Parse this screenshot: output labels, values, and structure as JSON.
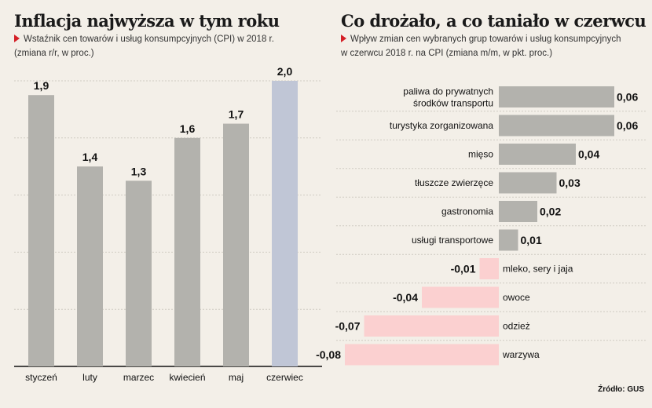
{
  "left": {
    "title": "Inflacja najwyższa w tym roku",
    "subtitle_line1": "Wstaźnik cen towarów i usług konsumpcyjnych (CPI) w 2018 r.",
    "subtitle_line2": "(zmiana r/r, w proc.)"
  },
  "right": {
    "title": "Co drożało, a co taniało w czerwcu",
    "subtitle_line1": "Wpływ zmian cen wybranych grup towarów i usług konsumpcyjnych",
    "subtitle_line2": "w czerwcu 2018 r. na CPI (zmiana  m/m, w pkt. proc.)"
  },
  "source": "Źródło: GUS",
  "colors": {
    "bar_gray": "#b3b2ad",
    "bar_highlight": "#c0c6d6",
    "bar_negative": "#fbd0d0",
    "gridline": "#cfcbc2",
    "accent_marker": "#d42027"
  },
  "chart_data": [
    {
      "type": "bar",
      "categories": [
        "styczeń",
        "luty",
        "marzec",
        "kwiecień",
        "maj",
        "czerwiec"
      ],
      "values": [
        1.9,
        1.4,
        1.3,
        1.6,
        1.7,
        2.0
      ],
      "value_labels": [
        "1,9",
        "1,4",
        "1,3",
        "1,6",
        "1,7",
        "2,0"
      ],
      "highlight_index": 5,
      "ylim": [
        0,
        2.0
      ],
      "grid": true
    },
    {
      "type": "bar",
      "orientation": "horizontal",
      "categories": [
        [
          "paliwa do prywatnych",
          "środków transportu"
        ],
        [
          "turystyka zorganizowana"
        ],
        [
          "mięso"
        ],
        [
          "tłuszcze zwierzęce"
        ],
        [
          "gastronomia"
        ],
        [
          "usługi transportowe"
        ],
        [
          "mleko, sery i jaja"
        ],
        [
          "owoce"
        ],
        [
          "odzież"
        ],
        [
          "warzywa"
        ]
      ],
      "values": [
        0.06,
        0.06,
        0.04,
        0.03,
        0.02,
        0.01,
        -0.01,
        -0.04,
        -0.07,
        -0.08
      ],
      "value_labels": [
        "0,06",
        "0,06",
        "0,04",
        "0,03",
        "0,02",
        "0,01",
        "-0,01",
        "-0,04",
        "-0,07",
        "-0,08"
      ],
      "xlim": [
        -0.08,
        0.06
      ],
      "grid": false
    }
  ]
}
